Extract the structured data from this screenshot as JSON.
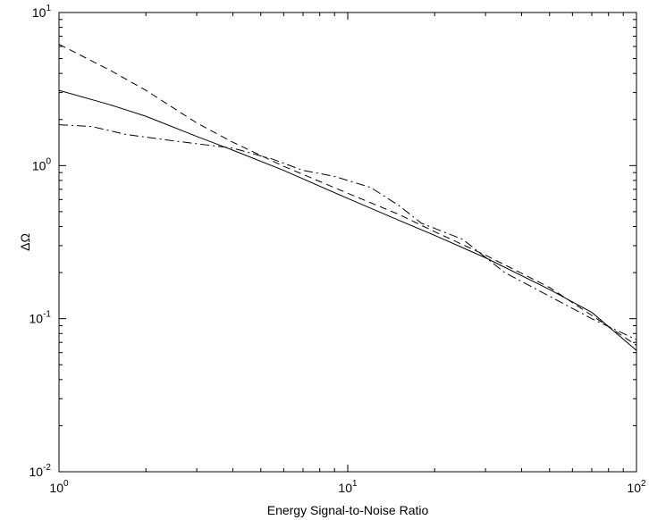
{
  "chart_data": {
    "type": "line",
    "title": "",
    "xlabel": "Energy Signal-to-Noise Ratio",
    "ylabel": "ΔΩ",
    "xscale": "log",
    "yscale": "log",
    "xlim": [
      1,
      100
    ],
    "ylim": [
      0.01,
      10
    ],
    "grid": false,
    "legend": "none",
    "x_ticks": [
      {
        "base": "10",
        "exp": "0",
        "value": 1
      },
      {
        "base": "10",
        "exp": "1",
        "value": 10
      },
      {
        "base": "10",
        "exp": "2",
        "value": 100
      }
    ],
    "y_ticks": [
      {
        "base": "10",
        "exp": "-2",
        "value": 0.01
      },
      {
        "base": "10",
        "exp": "-1",
        "value": 0.1
      },
      {
        "base": "10",
        "exp": "0",
        "value": 1
      },
      {
        "base": "10",
        "exp": "1",
        "value": 10
      }
    ],
    "series": [
      {
        "style": "solid",
        "color": "#000000",
        "x": [
          1,
          1.5,
          2,
          3,
          4,
          6,
          10,
          15,
          20,
          30,
          50,
          70,
          100
        ],
        "y": [
          3.1,
          2.5,
          2.1,
          1.55,
          1.26,
          0.93,
          0.61,
          0.44,
          0.35,
          0.25,
          0.155,
          0.11,
          0.062
        ]
      },
      {
        "style": "dashed",
        "color": "#000000",
        "x": [
          1,
          1.5,
          2,
          3,
          4,
          6,
          10,
          15,
          20,
          30,
          50,
          70,
          100
        ],
        "y": [
          6.2,
          4.2,
          3.1,
          1.9,
          1.42,
          0.99,
          0.66,
          0.48,
          0.37,
          0.26,
          0.16,
          0.105,
          0.067
        ]
      },
      {
        "style": "dashdot",
        "color": "#000000",
        "x": [
          1,
          1.3,
          1.7,
          2.5,
          4,
          5.5,
          7,
          9,
          12,
          15,
          18,
          25,
          35,
          50,
          70,
          100
        ],
        "y": [
          1.85,
          1.8,
          1.6,
          1.45,
          1.3,
          1.1,
          0.93,
          0.85,
          0.72,
          0.55,
          0.42,
          0.33,
          0.2,
          0.14,
          0.1,
          0.073
        ]
      }
    ]
  }
}
